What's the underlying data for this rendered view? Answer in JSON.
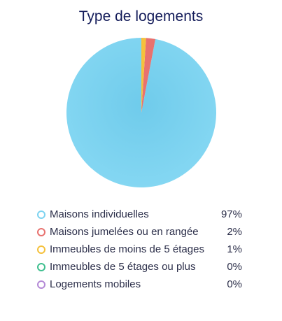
{
  "chart_data": {
    "type": "pie",
    "title": "Type de logements",
    "categories": [
      "Maisons individuelles",
      "Maisons jumelées ou en rangée",
      "Immeubles de moins de 5 étages",
      "Immeubles de 5 étages ou plus",
      "Logements mobiles"
    ],
    "values": [
      97,
      2,
      1,
      0,
      0
    ],
    "value_labels": [
      "97%",
      "2%",
      "1%",
      "0%",
      "0%"
    ],
    "colors": [
      "#7dd3f0",
      "#e8726f",
      "#f5c13c",
      "#3fbf8f",
      "#b48ad6"
    ],
    "legend_position": "bottom"
  }
}
